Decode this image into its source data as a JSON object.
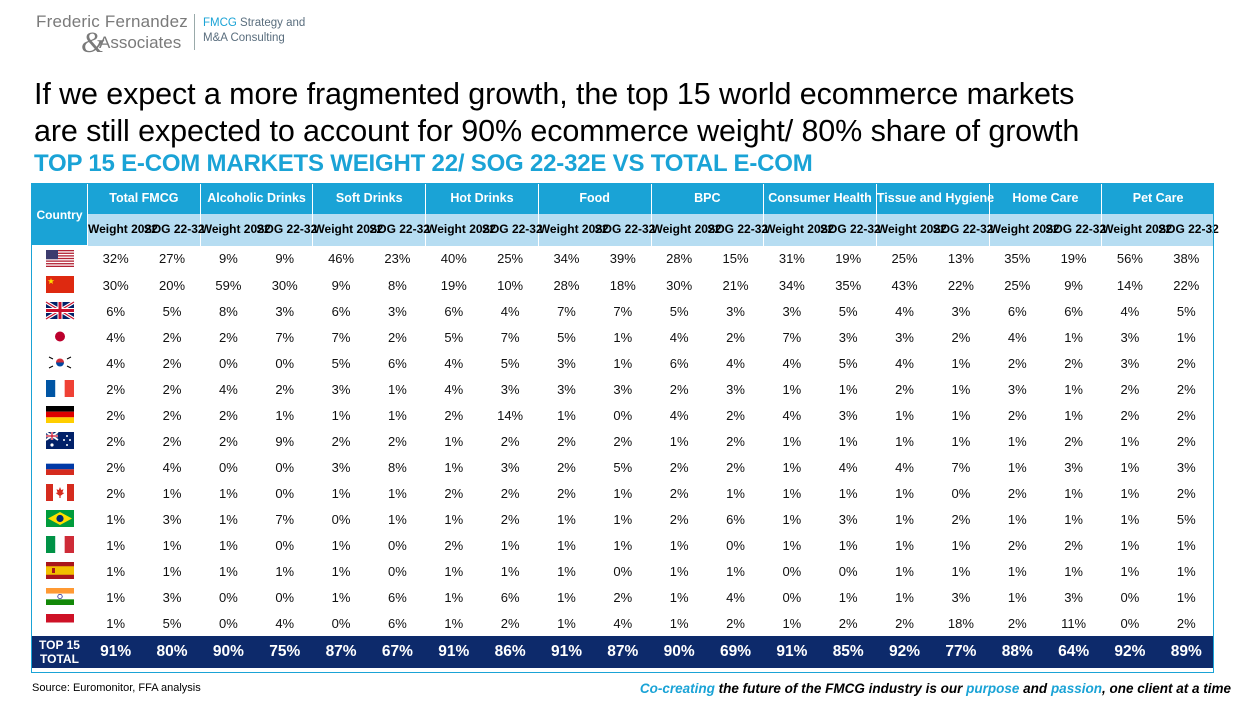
{
  "header": {
    "logo_name": "Frederic Fernandez",
    "logo_amp": "&",
    "logo_assoc": "Associates",
    "tagline_line1_a": "FMCG",
    "tagline_line1_b": " Strategy and",
    "tagline_line2": "M&A Consulting"
  },
  "headline_line1": "If we expect a more fragmented growth, the top 15 world ecommerce markets",
  "headline_line2": "are still expected to account for 90% ecommerce weight/ 80% share of growth",
  "subtitle": "TOP 15 E-COM MARKETS WEIGHT 22/ SOG 22-32E VS TOTAL E-COM",
  "table": {
    "country_header": "Country",
    "sub_weight": "Weight 2022",
    "sub_sog": "SOG 22-32",
    "categories": [
      "Total FMCG",
      "Alcoholic Drinks",
      "Soft Drinks",
      "Hot Drinks",
      "Food",
      "BPC",
      "Consumer Health",
      "Tissue and Hygiene",
      "Home Care",
      "Pet Care"
    ],
    "rows": [
      {
        "flag": "us-flag",
        "values": [
          "32%",
          "27%",
          "9%",
          "9%",
          "46%",
          "23%",
          "40%",
          "25%",
          "34%",
          "39%",
          "28%",
          "15%",
          "31%",
          "19%",
          "25%",
          "13%",
          "35%",
          "19%",
          "56%",
          "38%"
        ]
      },
      {
        "flag": "china-flag",
        "values": [
          "30%",
          "20%",
          "59%",
          "30%",
          "9%",
          "8%",
          "19%",
          "10%",
          "28%",
          "18%",
          "30%",
          "21%",
          "34%",
          "35%",
          "43%",
          "22%",
          "25%",
          "9%",
          "14%",
          "22%"
        ]
      },
      {
        "flag": "uk-flag",
        "values": [
          "6%",
          "5%",
          "8%",
          "3%",
          "6%",
          "3%",
          "6%",
          "4%",
          "7%",
          "7%",
          "5%",
          "3%",
          "3%",
          "5%",
          "4%",
          "3%",
          "6%",
          "6%",
          "4%",
          "5%"
        ]
      },
      {
        "flag": "japan-flag",
        "values": [
          "4%",
          "2%",
          "2%",
          "7%",
          "7%",
          "2%",
          "5%",
          "7%",
          "5%",
          "1%",
          "4%",
          "2%",
          "7%",
          "3%",
          "3%",
          "2%",
          "4%",
          "1%",
          "3%",
          "1%"
        ]
      },
      {
        "flag": "south-korea-flag",
        "values": [
          "4%",
          "2%",
          "0%",
          "0%",
          "5%",
          "6%",
          "4%",
          "5%",
          "3%",
          "1%",
          "6%",
          "4%",
          "4%",
          "5%",
          "4%",
          "1%",
          "2%",
          "2%",
          "3%",
          "2%"
        ]
      },
      {
        "flag": "france-flag",
        "values": [
          "2%",
          "2%",
          "4%",
          "2%",
          "3%",
          "1%",
          "4%",
          "3%",
          "3%",
          "3%",
          "2%",
          "3%",
          "1%",
          "1%",
          "2%",
          "1%",
          "3%",
          "1%",
          "2%",
          "2%"
        ]
      },
      {
        "flag": "germany-flag",
        "values": [
          "2%",
          "2%",
          "2%",
          "1%",
          "1%",
          "1%",
          "2%",
          "14%",
          "1%",
          "0%",
          "4%",
          "2%",
          "4%",
          "3%",
          "1%",
          "1%",
          "2%",
          "1%",
          "2%",
          "2%"
        ]
      },
      {
        "flag": "australia-flag",
        "values": [
          "2%",
          "2%",
          "2%",
          "9%",
          "2%",
          "2%",
          "1%",
          "2%",
          "2%",
          "2%",
          "1%",
          "2%",
          "1%",
          "1%",
          "1%",
          "1%",
          "1%",
          "2%",
          "1%",
          "2%"
        ]
      },
      {
        "flag": "russia-flag",
        "values": [
          "2%",
          "4%",
          "0%",
          "0%",
          "3%",
          "8%",
          "1%",
          "3%",
          "2%",
          "5%",
          "2%",
          "2%",
          "1%",
          "4%",
          "4%",
          "7%",
          "1%",
          "3%",
          "1%",
          "3%"
        ]
      },
      {
        "flag": "canada-flag",
        "values": [
          "2%",
          "1%",
          "1%",
          "0%",
          "1%",
          "1%",
          "2%",
          "2%",
          "2%",
          "1%",
          "2%",
          "1%",
          "1%",
          "1%",
          "1%",
          "0%",
          "2%",
          "1%",
          "1%",
          "2%"
        ]
      },
      {
        "flag": "brazil-flag",
        "values": [
          "1%",
          "3%",
          "1%",
          "7%",
          "0%",
          "1%",
          "1%",
          "2%",
          "1%",
          "1%",
          "2%",
          "6%",
          "1%",
          "3%",
          "1%",
          "2%",
          "1%",
          "1%",
          "1%",
          "5%"
        ]
      },
      {
        "flag": "italy-flag",
        "values": [
          "1%",
          "1%",
          "1%",
          "0%",
          "1%",
          "0%",
          "2%",
          "1%",
          "1%",
          "1%",
          "1%",
          "0%",
          "1%",
          "1%",
          "1%",
          "1%",
          "2%",
          "2%",
          "1%",
          "1%"
        ]
      },
      {
        "flag": "spain-flag",
        "values": [
          "1%",
          "1%",
          "1%",
          "1%",
          "1%",
          "0%",
          "1%",
          "1%",
          "1%",
          "0%",
          "1%",
          "1%",
          "0%",
          "0%",
          "1%",
          "1%",
          "1%",
          "1%",
          "1%",
          "1%"
        ]
      },
      {
        "flag": "india-flag",
        "values": [
          "1%",
          "3%",
          "0%",
          "0%",
          "1%",
          "6%",
          "1%",
          "6%",
          "1%",
          "2%",
          "1%",
          "4%",
          "0%",
          "1%",
          "1%",
          "3%",
          "1%",
          "3%",
          "0%",
          "1%"
        ]
      },
      {
        "flag": "indonesia-flag",
        "values": [
          "1%",
          "5%",
          "0%",
          "4%",
          "0%",
          "6%",
          "1%",
          "2%",
          "1%",
          "4%",
          "1%",
          "2%",
          "1%",
          "2%",
          "2%",
          "18%",
          "2%",
          "11%",
          "0%",
          "2%"
        ]
      }
    ],
    "total_label_line1": "TOP 15",
    "total_label_line2": "TOTAL",
    "totals": [
      "91%",
      "80%",
      "90%",
      "75%",
      "87%",
      "67%",
      "91%",
      "86%",
      "91%",
      "87%",
      "90%",
      "69%",
      "91%",
      "85%",
      "92%",
      "77%",
      "88%",
      "64%",
      "92%",
      "89%"
    ]
  },
  "source": "Source: Euromonitor, FFA analysis",
  "footer": {
    "p1": "Co-creating",
    "p2": " the future of the FMCG industry is our ",
    "p3": "purpose",
    "p4": " and ",
    "p5": "passion",
    "p6": ", one client at a time"
  },
  "colors": {
    "accent": "#1aa3d6",
    "subheader": "#b6ddf2",
    "total_bg": "#0d2a6b"
  }
}
